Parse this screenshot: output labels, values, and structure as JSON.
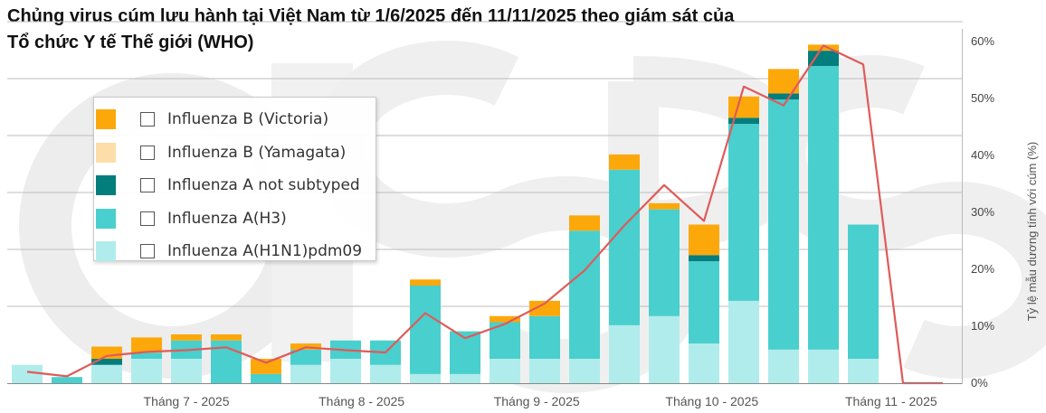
{
  "chart_data": {
    "type": "bar",
    "title_lines": [
      "Chủng virus cúm lưu hành tại Việt Nam từ 1/6/2025 đến 11/11/2025 theo giám sát của",
      "Tổ chức Y tế Thế giới (WHO)"
    ],
    "xlabel": "",
    "ylabel": "",
    "x_tick_labels": [
      "Tháng 7 - 2025",
      "Tháng 8 - 2025",
      "Tháng 9 - 2025",
      "Tháng 10 - 2025",
      "Tháng 11 - 2025"
    ],
    "x_tick_week_index": [
      4.5,
      8.9,
      13.3,
      17.7,
      22.2
    ],
    "y_right_label": "Tỷ lệ mẫu dương tính với cúm (%)",
    "y_right_ticks": [
      "0%",
      "10%",
      "20%",
      "30%",
      "40%",
      "50%",
      "60%"
    ],
    "y_right_lim": [
      0,
      60
    ],
    "y_left_lim": [
      0,
      56
    ],
    "stack_order": [
      "h1n1",
      "h3",
      "a_not_subtyped",
      "b_yamagata",
      "b_victoria"
    ],
    "series": [
      {
        "key": "b_victoria",
        "name": "Influenza B (Victoria)",
        "color": "#FCA80B"
      },
      {
        "key": "b_yamagata",
        "name": "Influenza B (Yamagata)",
        "color": "#FDDDA8"
      },
      {
        "key": "a_not_subtyped",
        "name": "Influenza A not subtyped",
        "color": "#047D7D"
      },
      {
        "key": "h3",
        "name": "Influenza A(H3)",
        "color": "#49CFCD"
      },
      {
        "key": "h1n1",
        "name": "Influenza A(H1N1)pdm09",
        "color": "#B0ECEC"
      }
    ],
    "weeks": [
      {
        "h1n1": 3,
        "h3": 0,
        "a_not_subtyped": 0,
        "b_yamagata": 0,
        "b_victoria": 0
      },
      {
        "h1n1": 0,
        "h3": 1,
        "a_not_subtyped": 0,
        "b_yamagata": 0,
        "b_victoria": 0
      },
      {
        "h1n1": 3,
        "h3": 0,
        "a_not_subtyped": 1,
        "b_yamagata": 0,
        "b_victoria": 2
      },
      {
        "h1n1": 4,
        "h3": 1,
        "a_not_subtyped": 0,
        "b_yamagata": 0,
        "b_victoria": 2.5
      },
      {
        "h1n1": 4,
        "h3": 3,
        "a_not_subtyped": 0,
        "b_yamagata": 0,
        "b_victoria": 1
      },
      {
        "h1n1": 0,
        "h3": 7,
        "a_not_subtyped": 0,
        "b_yamagata": 0,
        "b_victoria": 1
      },
      {
        "h1n1": 0,
        "h3": 1.5,
        "a_not_subtyped": 0,
        "b_yamagata": 0,
        "b_victoria": 2.5
      },
      {
        "h1n1": 3,
        "h3": 2.5,
        "a_not_subtyped": 0,
        "b_yamagata": 0,
        "b_victoria": 1
      },
      {
        "h1n1": 4,
        "h3": 3,
        "a_not_subtyped": 0,
        "b_yamagata": 0,
        "b_victoria": 0
      },
      {
        "h1n1": 3,
        "h3": 4,
        "a_not_subtyped": 0,
        "b_yamagata": 0,
        "b_victoria": 0
      },
      {
        "h1n1": 1.5,
        "h3": 14.5,
        "a_not_subtyped": 0,
        "b_yamagata": 0,
        "b_victoria": 1
      },
      {
        "h1n1": 1.5,
        "h3": 7,
        "a_not_subtyped": 0,
        "b_yamagata": 0,
        "b_victoria": 0
      },
      {
        "h1n1": 4,
        "h3": 6,
        "a_not_subtyped": 0,
        "b_yamagata": 0,
        "b_victoria": 1
      },
      {
        "h1n1": 4,
        "h3": 7,
        "a_not_subtyped": 0,
        "b_yamagata": 0,
        "b_victoria": 2.5
      },
      {
        "h1n1": 4,
        "h3": 21,
        "a_not_subtyped": 0,
        "b_yamagata": 0,
        "b_victoria": 2.5
      },
      {
        "h1n1": 9.5,
        "h3": 25.5,
        "a_not_subtyped": 0,
        "b_yamagata": 0,
        "b_victoria": 2.5
      },
      {
        "h1n1": 11,
        "h3": 17.5,
        "a_not_subtyped": 0,
        "b_yamagata": 0,
        "b_victoria": 1
      },
      {
        "h1n1": 6.5,
        "h3": 13.5,
        "a_not_subtyped": 1,
        "b_yamagata": 0,
        "b_victoria": 5
      },
      {
        "h1n1": 13.5,
        "h3": 29,
        "a_not_subtyped": 1,
        "b_yamagata": 0,
        "b_victoria": 3.5
      },
      {
        "h1n1": 5.5,
        "h3": 41,
        "a_not_subtyped": 1,
        "b_yamagata": 0,
        "b_victoria": 4
      },
      {
        "h1n1": 5.5,
        "h3": 46.5,
        "a_not_subtyped": 2.5,
        "b_yamagata": 0,
        "b_victoria": 1
      },
      {
        "h1n1": 4,
        "h3": 22,
        "a_not_subtyped": 0,
        "b_yamagata": 0,
        "b_victoria": 0
      },
      {
        "h1n1": 0,
        "h3": 0,
        "a_not_subtyped": 0,
        "b_yamagata": 0,
        "b_victoria": 0
      },
      {
        "h1n1": 0,
        "h3": 0,
        "a_not_subtyped": 0,
        "b_yamagata": 0,
        "b_victoria": 0
      }
    ],
    "positivity_pct": [
      2.0,
      1.2,
      4.8,
      5.5,
      5.8,
      6.3,
      3.6,
      6.3,
      5.8,
      5.4,
      12.3,
      7.9,
      10.4,
      14.0,
      19.8,
      27.7,
      34.8,
      28.5,
      52.1,
      48.8,
      59.3,
      56.0,
      0.0,
      0.0
    ],
    "line_color": "#E05A5A",
    "grid": true,
    "legend_position": "top-left"
  }
}
